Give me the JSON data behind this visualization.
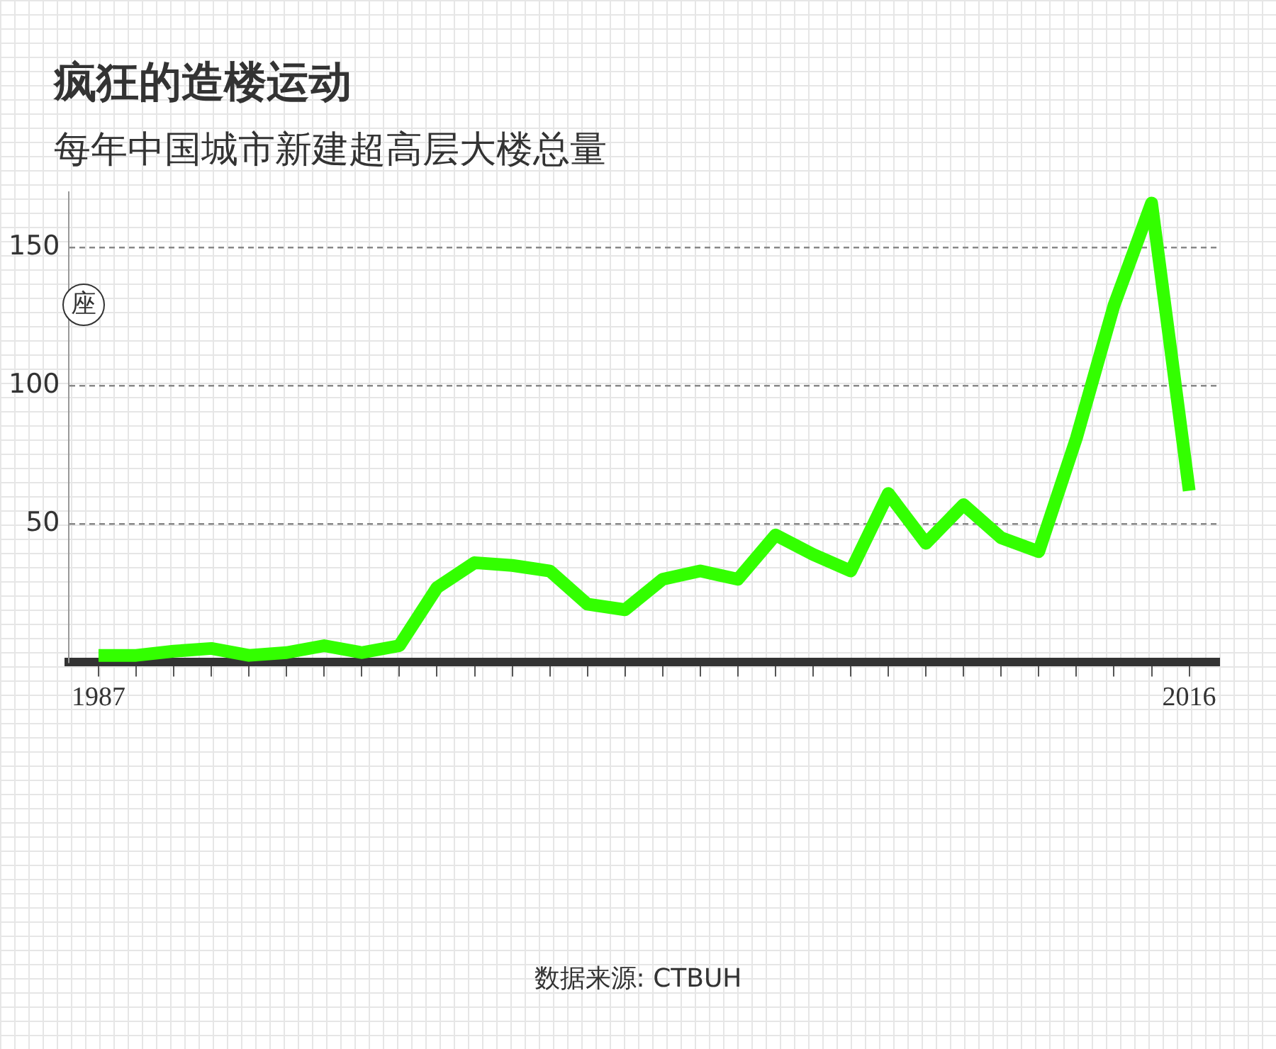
{
  "chart_data": {
    "type": "line",
    "title": "疯狂的造楼运动",
    "subtitle": "每年中国城市新建超高层大楼总量",
    "ylabel": "座",
    "annotations": [
      "数据来源: CTBUH"
    ],
    "x": [
      1987,
      1988,
      1989,
      1990,
      1991,
      1992,
      1993,
      1994,
      1995,
      1996,
      1997,
      1998,
      1999,
      2000,
      2001,
      2002,
      2003,
      2004,
      2005,
      2006,
      2007,
      2008,
      2009,
      2010,
      2011,
      2012,
      2013,
      2014,
      2015,
      2016
    ],
    "values": [
      2.5,
      2.5,
      4,
      5,
      2.5,
      3.5,
      6,
      3.5,
      6,
      27,
      36,
      35,
      33,
      21,
      19,
      30,
      33,
      30,
      46,
      39,
      33,
      61,
      43,
      57,
      45,
      40,
      81,
      129,
      166,
      62
    ],
    "color": "#33ff00",
    "xlim": [
      1986.2,
      2016.8
    ],
    "xticks": [
      1987,
      {
        "value": 1988,
        "label": null
      },
      {
        "value": 1989,
        "label": null
      },
      {
        "value": 1990,
        "label": null
      },
      {
        "value": 1991,
        "label": null
      },
      {
        "value": 1992,
        "label": null
      },
      {
        "value": 1993,
        "label": null
      },
      {
        "value": 1994,
        "label": null
      },
      {
        "value": 1995,
        "label": null
      },
      {
        "value": 1996,
        "label": null
      },
      {
        "value": 1997,
        "label": null
      },
      {
        "value": 1998,
        "label": null
      },
      {
        "value": 1999,
        "label": null
      },
      {
        "value": 2000,
        "label": null
      },
      {
        "value": 2001,
        "label": null
      },
      {
        "value": 2002,
        "label": null
      },
      {
        "value": 2003,
        "label": null
      },
      {
        "value": 2004,
        "label": null
      },
      {
        "value": 2005,
        "label": null
      },
      {
        "value": 2006,
        "label": null
      },
      {
        "value": 2007,
        "label": null
      },
      {
        "value": 2008,
        "label": null
      },
      {
        "value": 2009,
        "label": null
      },
      {
        "value": 2010,
        "label": null
      },
      {
        "value": 2011,
        "label": null
      },
      {
        "value": 2012,
        "label": null
      },
      {
        "value": 2013,
        "label": null
      },
      {
        "value": 2014,
        "label": null
      },
      {
        "value": 2015,
        "label": null
      },
      2016
    ],
    "ylim": [
      0,
      170
    ],
    "yticks": [
      50,
      100,
      150
    ],
    "grid": "y"
  }
}
